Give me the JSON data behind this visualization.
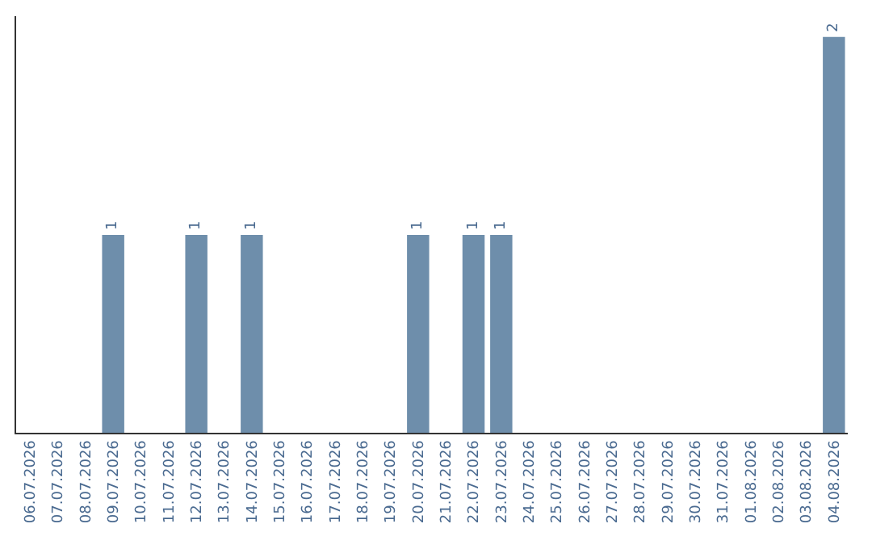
{
  "chart_data": {
    "type": "bar",
    "categories": [
      "06.07.2026",
      "07.07.2026",
      "08.07.2026",
      "09.07.2026",
      "10.07.2026",
      "11.07.2026",
      "12.07.2026",
      "13.07.2026",
      "14.07.2026",
      "15.07.2026",
      "16.07.2026",
      "17.07.2026",
      "18.07.2026",
      "19.07.2026",
      "20.07.2026",
      "21.07.2026",
      "22.07.2026",
      "23.07.2026",
      "24.07.2026",
      "25.07.2026",
      "26.07.2026",
      "27.07.2026",
      "28.07.2026",
      "29.07.2026",
      "30.07.2026",
      "31.07.2026",
      "01.08.2026",
      "02.08.2026",
      "03.08.2026",
      "04.08.2026"
    ],
    "values": [
      0,
      0,
      0,
      1,
      0,
      0,
      1,
      0,
      1,
      0,
      0,
      0,
      0,
      0,
      1,
      0,
      1,
      1,
      0,
      0,
      0,
      0,
      0,
      0,
      0,
      0,
      0,
      0,
      0,
      2
    ],
    "value_labels": [
      null,
      null,
      null,
      "1",
      null,
      null,
      "1",
      null,
      "1",
      null,
      null,
      null,
      null,
      null,
      "1",
      null,
      "1",
      "1",
      null,
      null,
      null,
      null,
      null,
      null,
      null,
      null,
      null,
      null,
      null,
      "2"
    ],
    "color": "#6e8eab",
    "legend": false
  }
}
